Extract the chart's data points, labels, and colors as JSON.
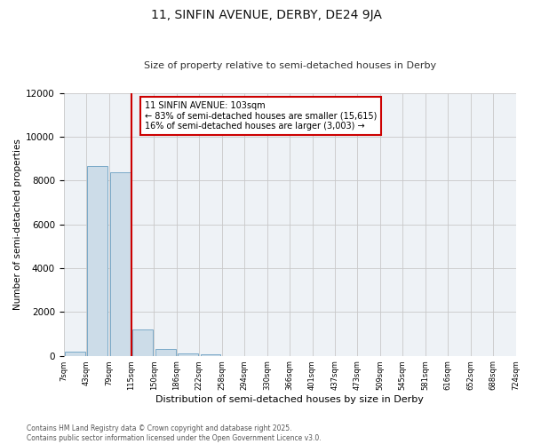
{
  "title": "11, SINFIN AVENUE, DERBY, DE24 9JA",
  "subtitle": "Size of property relative to semi-detached houses in Derby",
  "xlabel": "Distribution of semi-detached houses by size in Derby",
  "ylabel": "Number of semi-detached properties",
  "bin_labels": [
    "7sqm",
    "43sqm",
    "79sqm",
    "115sqm",
    "150sqm",
    "186sqm",
    "222sqm",
    "258sqm",
    "294sqm",
    "330sqm",
    "366sqm",
    "401sqm",
    "437sqm",
    "473sqm",
    "509sqm",
    "545sqm",
    "581sqm",
    "616sqm",
    "652sqm",
    "688sqm",
    "724sqm"
  ],
  "bar_heights": [
    200,
    8650,
    8400,
    1200,
    320,
    120,
    50,
    0,
    0,
    0,
    0,
    0,
    0,
    0,
    0,
    0,
    0,
    0,
    0,
    0
  ],
  "bar_color": "#ccdce8",
  "bar_edge_color": "#7aaac8",
  "property_label": "11 SINFIN AVENUE: 103sqm",
  "pct_smaller": 83,
  "num_smaller": 15615,
  "pct_larger": 16,
  "num_larger": 3003,
  "vline_color": "#cc0000",
  "vline_bin_index": 2,
  "ylim": [
    0,
    12000
  ],
  "yticks": [
    0,
    2000,
    4000,
    6000,
    8000,
    10000,
    12000
  ],
  "bg_color": "#eef2f6",
  "grid_color": "#c8c8c8",
  "annotation_box_color": "#cc0000",
  "footer_line1": "Contains HM Land Registry data © Crown copyright and database right 2025.",
  "footer_line2": "Contains public sector information licensed under the Open Government Licence v3.0."
}
